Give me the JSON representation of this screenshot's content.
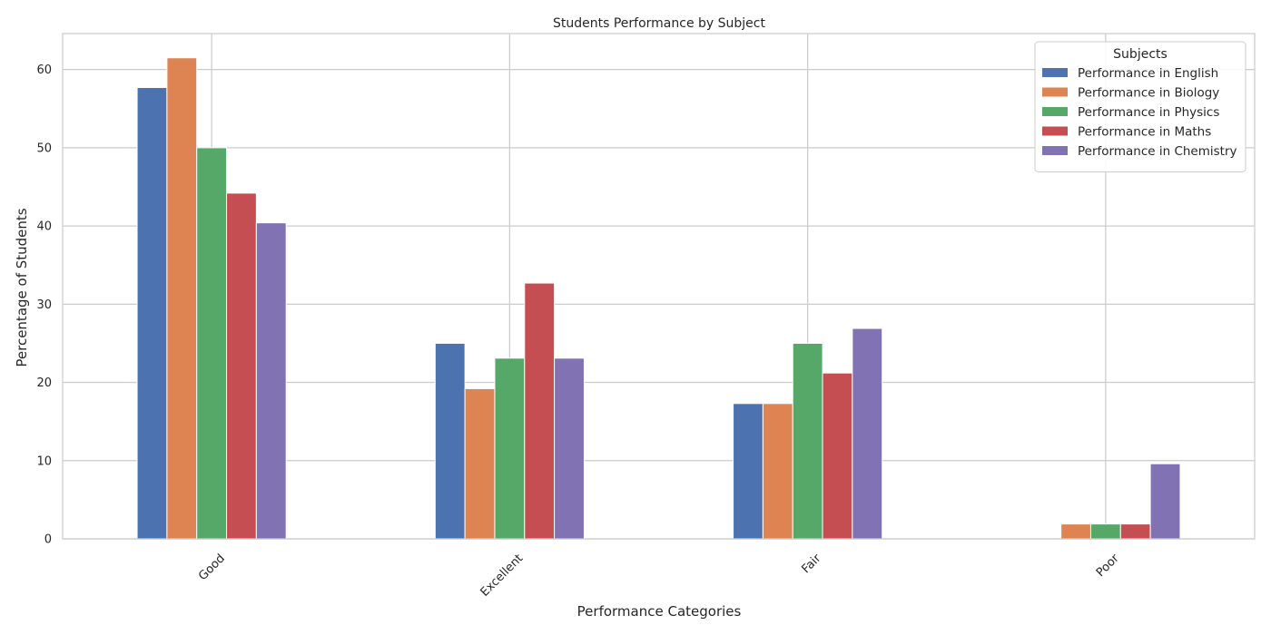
{
  "chart_data": {
    "type": "bar",
    "title": "Students Performance by Subject",
    "xlabel": "Performance Categories",
    "ylabel": "Percentage of Students",
    "categories": [
      "Good",
      "Excellent",
      "Fair",
      "Poor"
    ],
    "ylim": [
      0,
      64.6
    ],
    "yticks": [
      0,
      10,
      20,
      30,
      40,
      50,
      60
    ],
    "grid": true,
    "legend": {
      "title": "Subjects",
      "placement": "top-right"
    },
    "series": [
      {
        "name": "Performance in English",
        "color": "#4c72b0",
        "values": [
          57.7,
          25.0,
          17.3,
          0.0
        ]
      },
      {
        "name": "Performance in Biology",
        "color": "#dd8452",
        "values": [
          61.5,
          19.2,
          17.3,
          1.9
        ]
      },
      {
        "name": "Performance in Physics",
        "color": "#55a868",
        "values": [
          50.0,
          23.1,
          25.0,
          1.9
        ]
      },
      {
        "name": "Performance in Maths",
        "color": "#c44e52",
        "values": [
          44.2,
          32.7,
          21.2,
          1.9
        ]
      },
      {
        "name": "Performance in Chemistry",
        "color": "#8172b3",
        "values": [
          40.4,
          23.1,
          26.9,
          9.6
        ]
      }
    ]
  }
}
